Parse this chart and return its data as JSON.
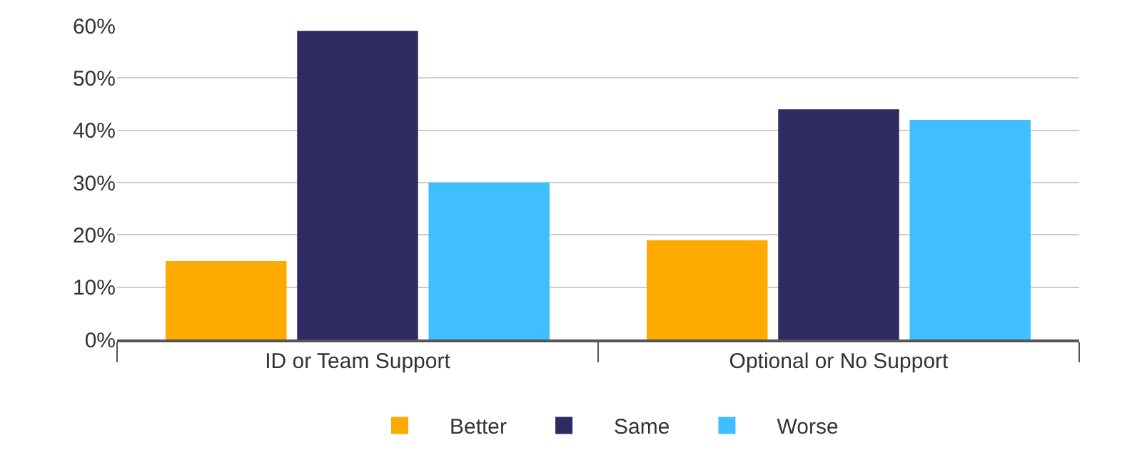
{
  "chart_data": {
    "type": "bar",
    "categories": [
      "ID or Team Support",
      "Optional or No Support"
    ],
    "series": [
      {
        "name": "Better",
        "color": "#ffaa00",
        "values": [
          15,
          19
        ]
      },
      {
        "name": "Same",
        "color": "#2e2b63",
        "values": [
          59,
          44
        ]
      },
      {
        "name": "Worse",
        "color": "#3fbfff",
        "values": [
          30,
          42
        ]
      }
    ],
    "ylim": [
      0,
      60
    ],
    "yticks": [
      {
        "value": 0,
        "label": "0%"
      },
      {
        "value": 10,
        "label": "10%"
      },
      {
        "value": 20,
        "label": "20%"
      },
      {
        "value": 30,
        "label": "30%"
      },
      {
        "value": 40,
        "label": "40%"
      },
      {
        "value": 50,
        "label": "50%"
      },
      {
        "value": 60,
        "label": "60%"
      }
    ],
    "grid": "y",
    "legend": "bottom"
  }
}
